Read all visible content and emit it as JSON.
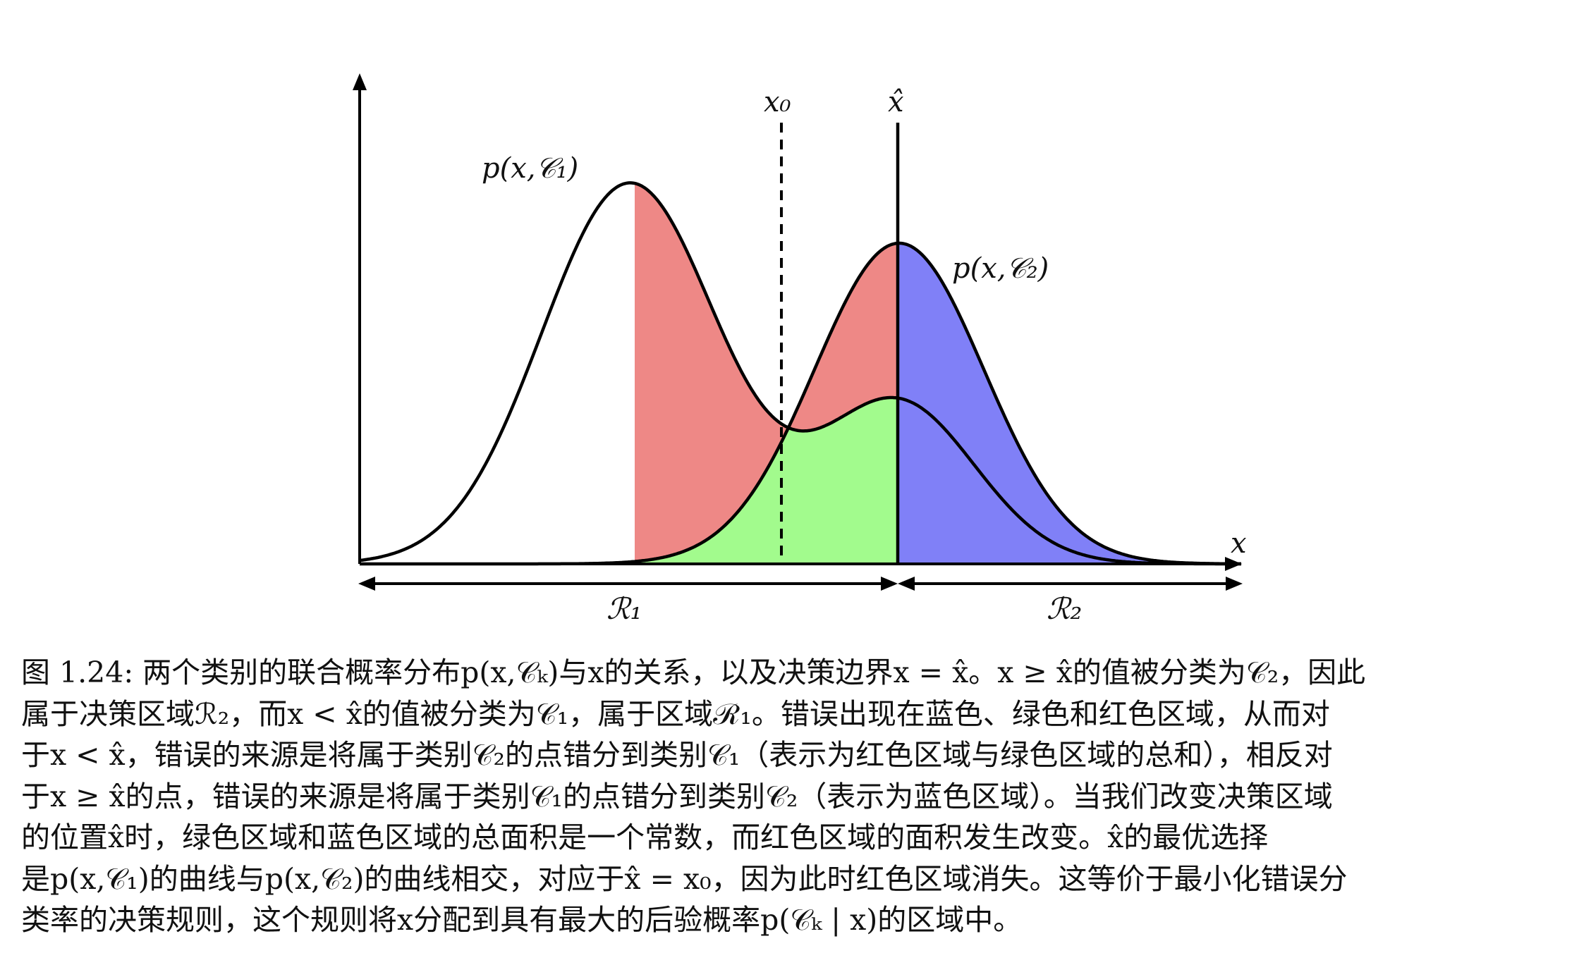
{
  "figure": {
    "labels": {
      "x0": "x₀",
      "xhat": "x̂",
      "x_axis": "x",
      "pc1": "p(x,𝒞₁)",
      "pc2": "p(x,𝒞₂)",
      "r1": "ℛ₁",
      "r2": "ℛ₂"
    },
    "colors": {
      "red_region": "#ee8886",
      "green_region": "#a2fb8d",
      "blue_region": "#8080f7",
      "curve": "#000000"
    }
  },
  "caption": {
    "lines": [
      "图 1.24: 两个类别的联合概率分布p(x,𝒞ₖ)与x的关系，以及决策边界x = x̂。x ≥ x̂的值被分类为𝒞₂，因此",
      "属于决策区域ℛ₂，而x < x̂的值被分类为𝒞₁，属于区域ℛ₁。错误出现在蓝色、绿色和红色区域，从而对",
      "于x < x̂，错误的来源是将属于类别𝒞₂的点错分到类别𝒞₁（表示为红色区域与绿色区域的总和），相反对",
      "于x ≥ x̂的点，错误的来源是将属于类别𝒞₁的点错分到类别𝒞₂（表示为蓝色区域）。当我们改变决策区域",
      "的位置x̂时，绿色区域和蓝色区域的总面积是一个常数，而红色区域的面积发生改变。x̂的最优选择",
      "是p(x,𝒞₁)的曲线与p(x,𝒞₂)的曲线相交，对应于x̂ = x₀，因为此时红色区域消失。这等价于最小化错误分",
      "类率的决策规则，这个规则将x分配到具有最大的后验概率p(𝒞ₖ | x)的区域中。"
    ]
  }
}
